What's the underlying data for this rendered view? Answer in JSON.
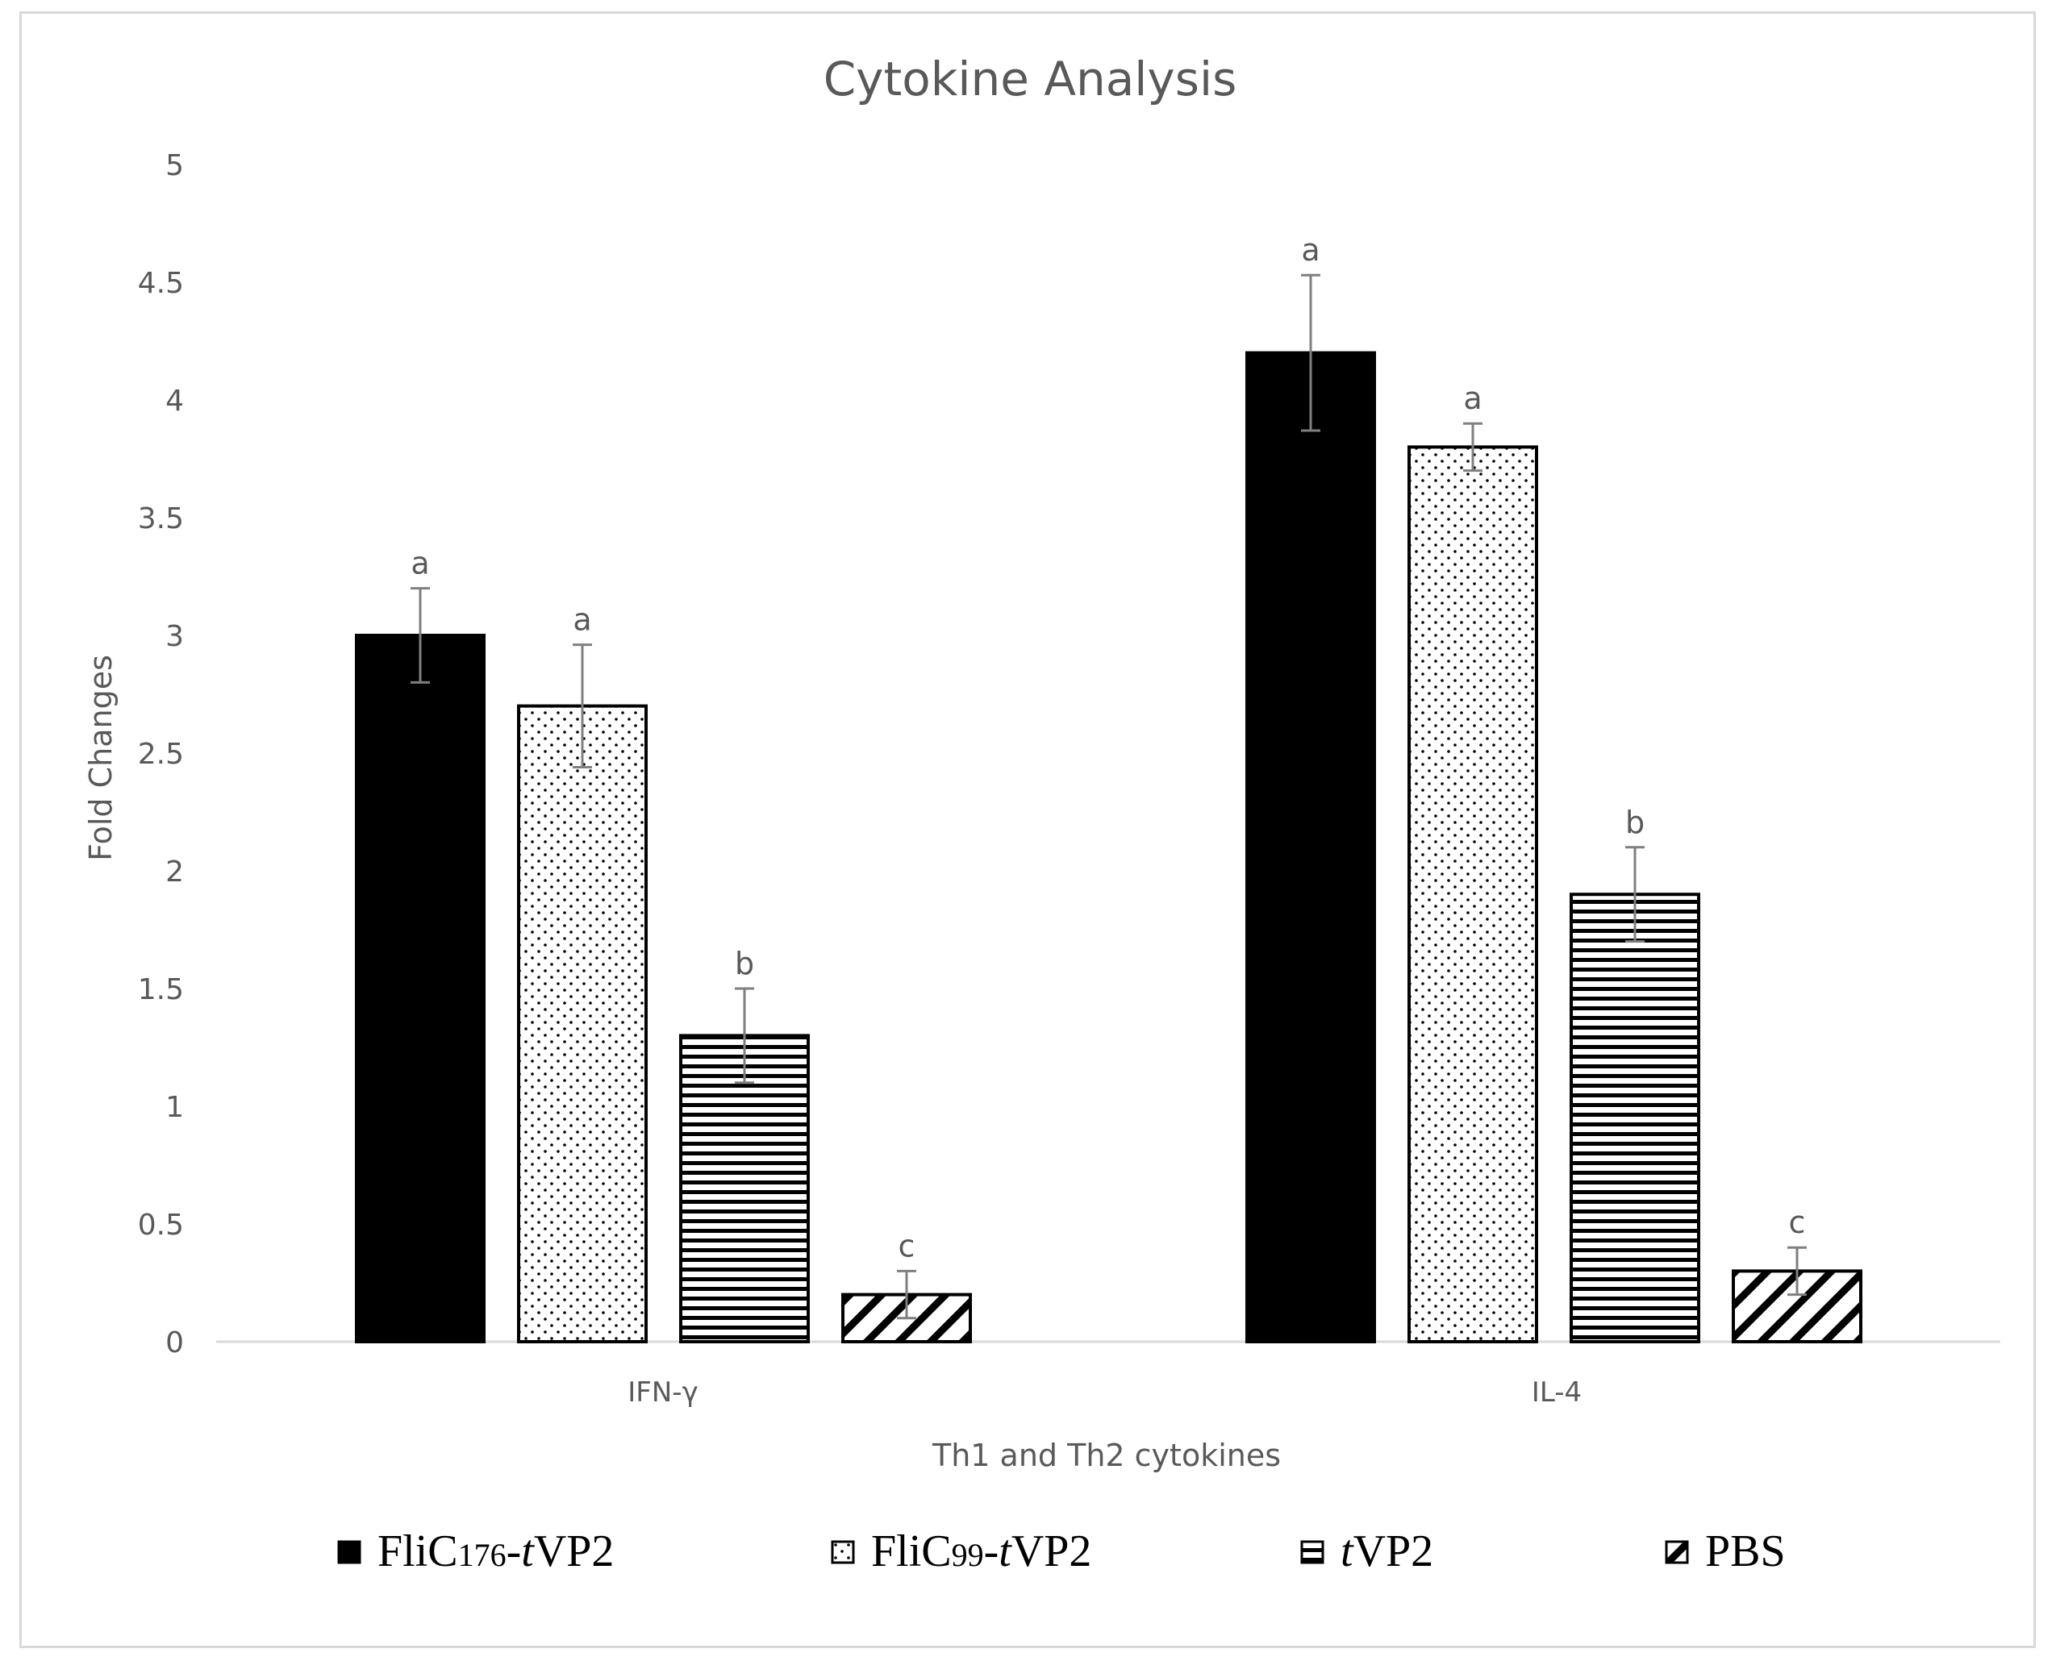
{
  "chart_data": {
    "type": "bar",
    "title": "Cytokine Analysis",
    "xlabel": "Th1 and Th2 cytokines",
    "ylabel": "Fold Changes",
    "ylim": [
      0,
      5
    ],
    "yticks": [
      0,
      0.5,
      1,
      1.5,
      2,
      2.5,
      3,
      3.5,
      4,
      4.5,
      5
    ],
    "ytick_labels": [
      "0",
      "0.5",
      "1",
      "1.5",
      "2",
      "2.5",
      "3",
      "3.5",
      "4",
      "4.5",
      "5"
    ],
    "categories": [
      "IFN-γ",
      "IL-4"
    ],
    "grid": false,
    "legend_position": "bottom",
    "series": [
      {
        "name": "FliC176-tVP2",
        "legend": {
          "prefix": "FliC",
          "sub": "176",
          "dash": "-",
          "italic": "t",
          "suffix": "VP2"
        },
        "pattern": "solid",
        "values": [
          3.0,
          4.2
        ],
        "errors": [
          0.2,
          0.33
        ],
        "letters": [
          "a",
          "a"
        ]
      },
      {
        "name": "FliC99-tVP2",
        "legend": {
          "prefix": "FliC",
          "sub": "99",
          "dash": "-",
          "italic": "t",
          "suffix": "VP2"
        },
        "pattern": "dots",
        "values": [
          2.7,
          3.8
        ],
        "errors": [
          0.26,
          0.1
        ],
        "letters": [
          "a",
          "a"
        ]
      },
      {
        "name": "tVP2",
        "legend": {
          "prefix": "",
          "sub": "",
          "dash": "",
          "italic": "t",
          "suffix": "VP2"
        },
        "pattern": "horizontal",
        "values": [
          1.3,
          1.9
        ],
        "errors": [
          0.2,
          0.2
        ],
        "letters": [
          "b",
          "b"
        ]
      },
      {
        "name": "PBS",
        "legend": {
          "prefix": "PBS",
          "sub": "",
          "dash": "",
          "italic": "",
          "suffix": ""
        },
        "pattern": "diagonal",
        "values": [
          0.2,
          0.3
        ],
        "errors": [
          0.1,
          0.1
        ],
        "letters": [
          "c",
          "c"
        ]
      }
    ]
  },
  "colors": {
    "bar_fill": "#000000",
    "axis_text": "#595959",
    "axis_line": "#d9d9d9",
    "error_bar": "#7f7f7f",
    "frame": "#d9d9d9"
  }
}
